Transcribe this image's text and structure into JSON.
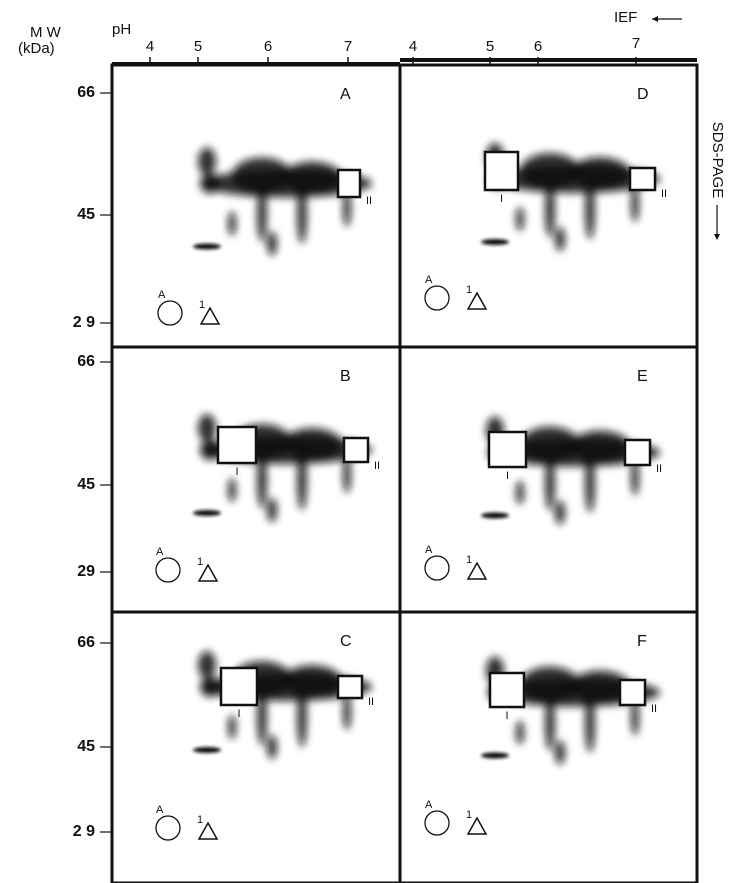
{
  "axis": {
    "mw_label": "M W",
    "mw_unit": "(kDa)",
    "ph_label": "pH",
    "ief_label": "IEF",
    "sds_label": "SDS-PAGE"
  },
  "ph_ticks": {
    "left": [
      "4",
      "5",
      "6",
      "7"
    ],
    "right": [
      "4",
      "5",
      "6",
      "7"
    ]
  },
  "mw_ticks": [
    [
      "66",
      "45",
      "2 9"
    ],
    [
      "66",
      "45",
      "29"
    ],
    [
      "66",
      "45",
      "2 9"
    ]
  ],
  "panels": [
    {
      "letter": "A",
      "circle_label": "A",
      "triangle_label": "1",
      "boxes": [
        {
          "label": "II"
        }
      ]
    },
    {
      "letter": "D",
      "circle_label": "A",
      "triangle_label": "1",
      "boxes": [
        {
          "label": "I"
        },
        {
          "label": "II"
        }
      ]
    },
    {
      "letter": "B",
      "circle_label": "A",
      "triangle_label": "1",
      "boxes": [
        {
          "label": "I"
        },
        {
          "label": "II"
        }
      ]
    },
    {
      "letter": "E",
      "circle_label": "A",
      "triangle_label": "1",
      "boxes": [
        {
          "label": "I"
        },
        {
          "label": "II"
        }
      ]
    },
    {
      "letter": "C",
      "circle_label": "A",
      "triangle_label": "1",
      "boxes": [
        {
          "label": "I"
        },
        {
          "label": "II"
        }
      ]
    },
    {
      "letter": "F",
      "circle_label": "A",
      "triangle_label": "1",
      "boxes": [
        {
          "label": "I"
        },
        {
          "label": "II"
        }
      ]
    }
  ]
}
